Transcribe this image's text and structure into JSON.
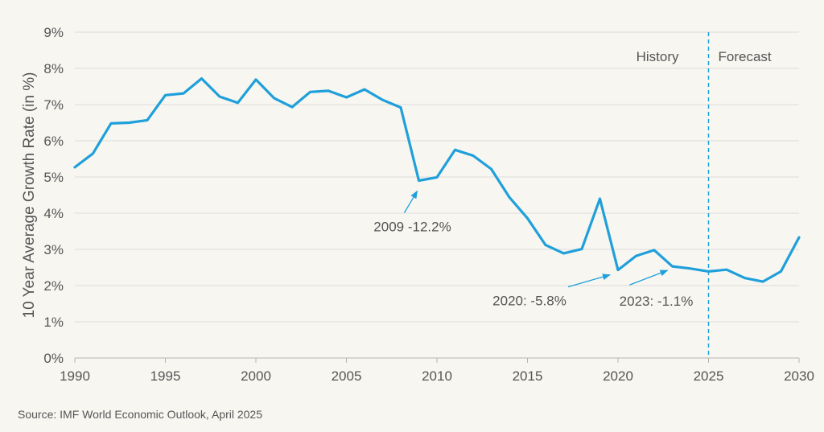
{
  "chart_data": {
    "type": "line",
    "ylabel": "10 Year Average Growth Rate (in %)",
    "xlim": [
      1990,
      2030
    ],
    "ylim": [
      0,
      9
    ],
    "x_ticks": [
      1990,
      1995,
      2000,
      2005,
      2010,
      2015,
      2020,
      2025,
      2030
    ],
    "y_ticks": [
      0,
      1,
      2,
      3,
      4,
      5,
      6,
      7,
      8,
      9
    ],
    "y_tick_labels": [
      "0%",
      "1%",
      "2%",
      "3%",
      "4%",
      "5%",
      "6%",
      "7%",
      "8%",
      "9%"
    ],
    "grid": "horizontal",
    "series": [
      {
        "color": "#1fa0da",
        "x": [
          1990,
          1991,
          1992,
          1993,
          1994,
          1995,
          1996,
          1997,
          1998,
          1999,
          2000,
          2001,
          2002,
          2003,
          2004,
          2005,
          2006,
          2007,
          2008,
          2009,
          2010,
          2011,
          2012,
          2013,
          2014,
          2015,
          2016,
          2017,
          2018,
          2019,
          2020,
          2021,
          2022,
          2023,
          2024,
          2025,
          2026,
          2027,
          2028,
          2029,
          2030
        ],
        "y": [
          5.27,
          5.65,
          6.48,
          6.5,
          6.57,
          7.26,
          7.31,
          7.72,
          7.22,
          7.05,
          7.69,
          7.18,
          6.93,
          7.35,
          7.38,
          7.2,
          7.42,
          7.13,
          6.92,
          4.9,
          4.99,
          5.75,
          5.59,
          5.22,
          4.44,
          3.86,
          3.12,
          2.89,
          3.01,
          4.4,
          2.43,
          2.82,
          2.98,
          2.53,
          2.47,
          2.39,
          2.44,
          2.21,
          2.11,
          2.39,
          3.33
        ]
      }
    ],
    "divider": {
      "x": 2025,
      "style": "dashed",
      "color": "#1fa0da"
    },
    "region_labels": {
      "history": "History",
      "forecast": "Forecast"
    },
    "annotations": [
      {
        "text": "2009 -12.2%",
        "target_x": 2009,
        "target_y": 4.9
      },
      {
        "text": "2020: -5.8%",
        "target_x": 2020,
        "target_y": 2.43
      },
      {
        "text": "2023: -1.1%",
        "target_x": 2023,
        "target_y": 2.53
      }
    ]
  },
  "source": "Source: IMF World Economic Outlook, April 2025"
}
